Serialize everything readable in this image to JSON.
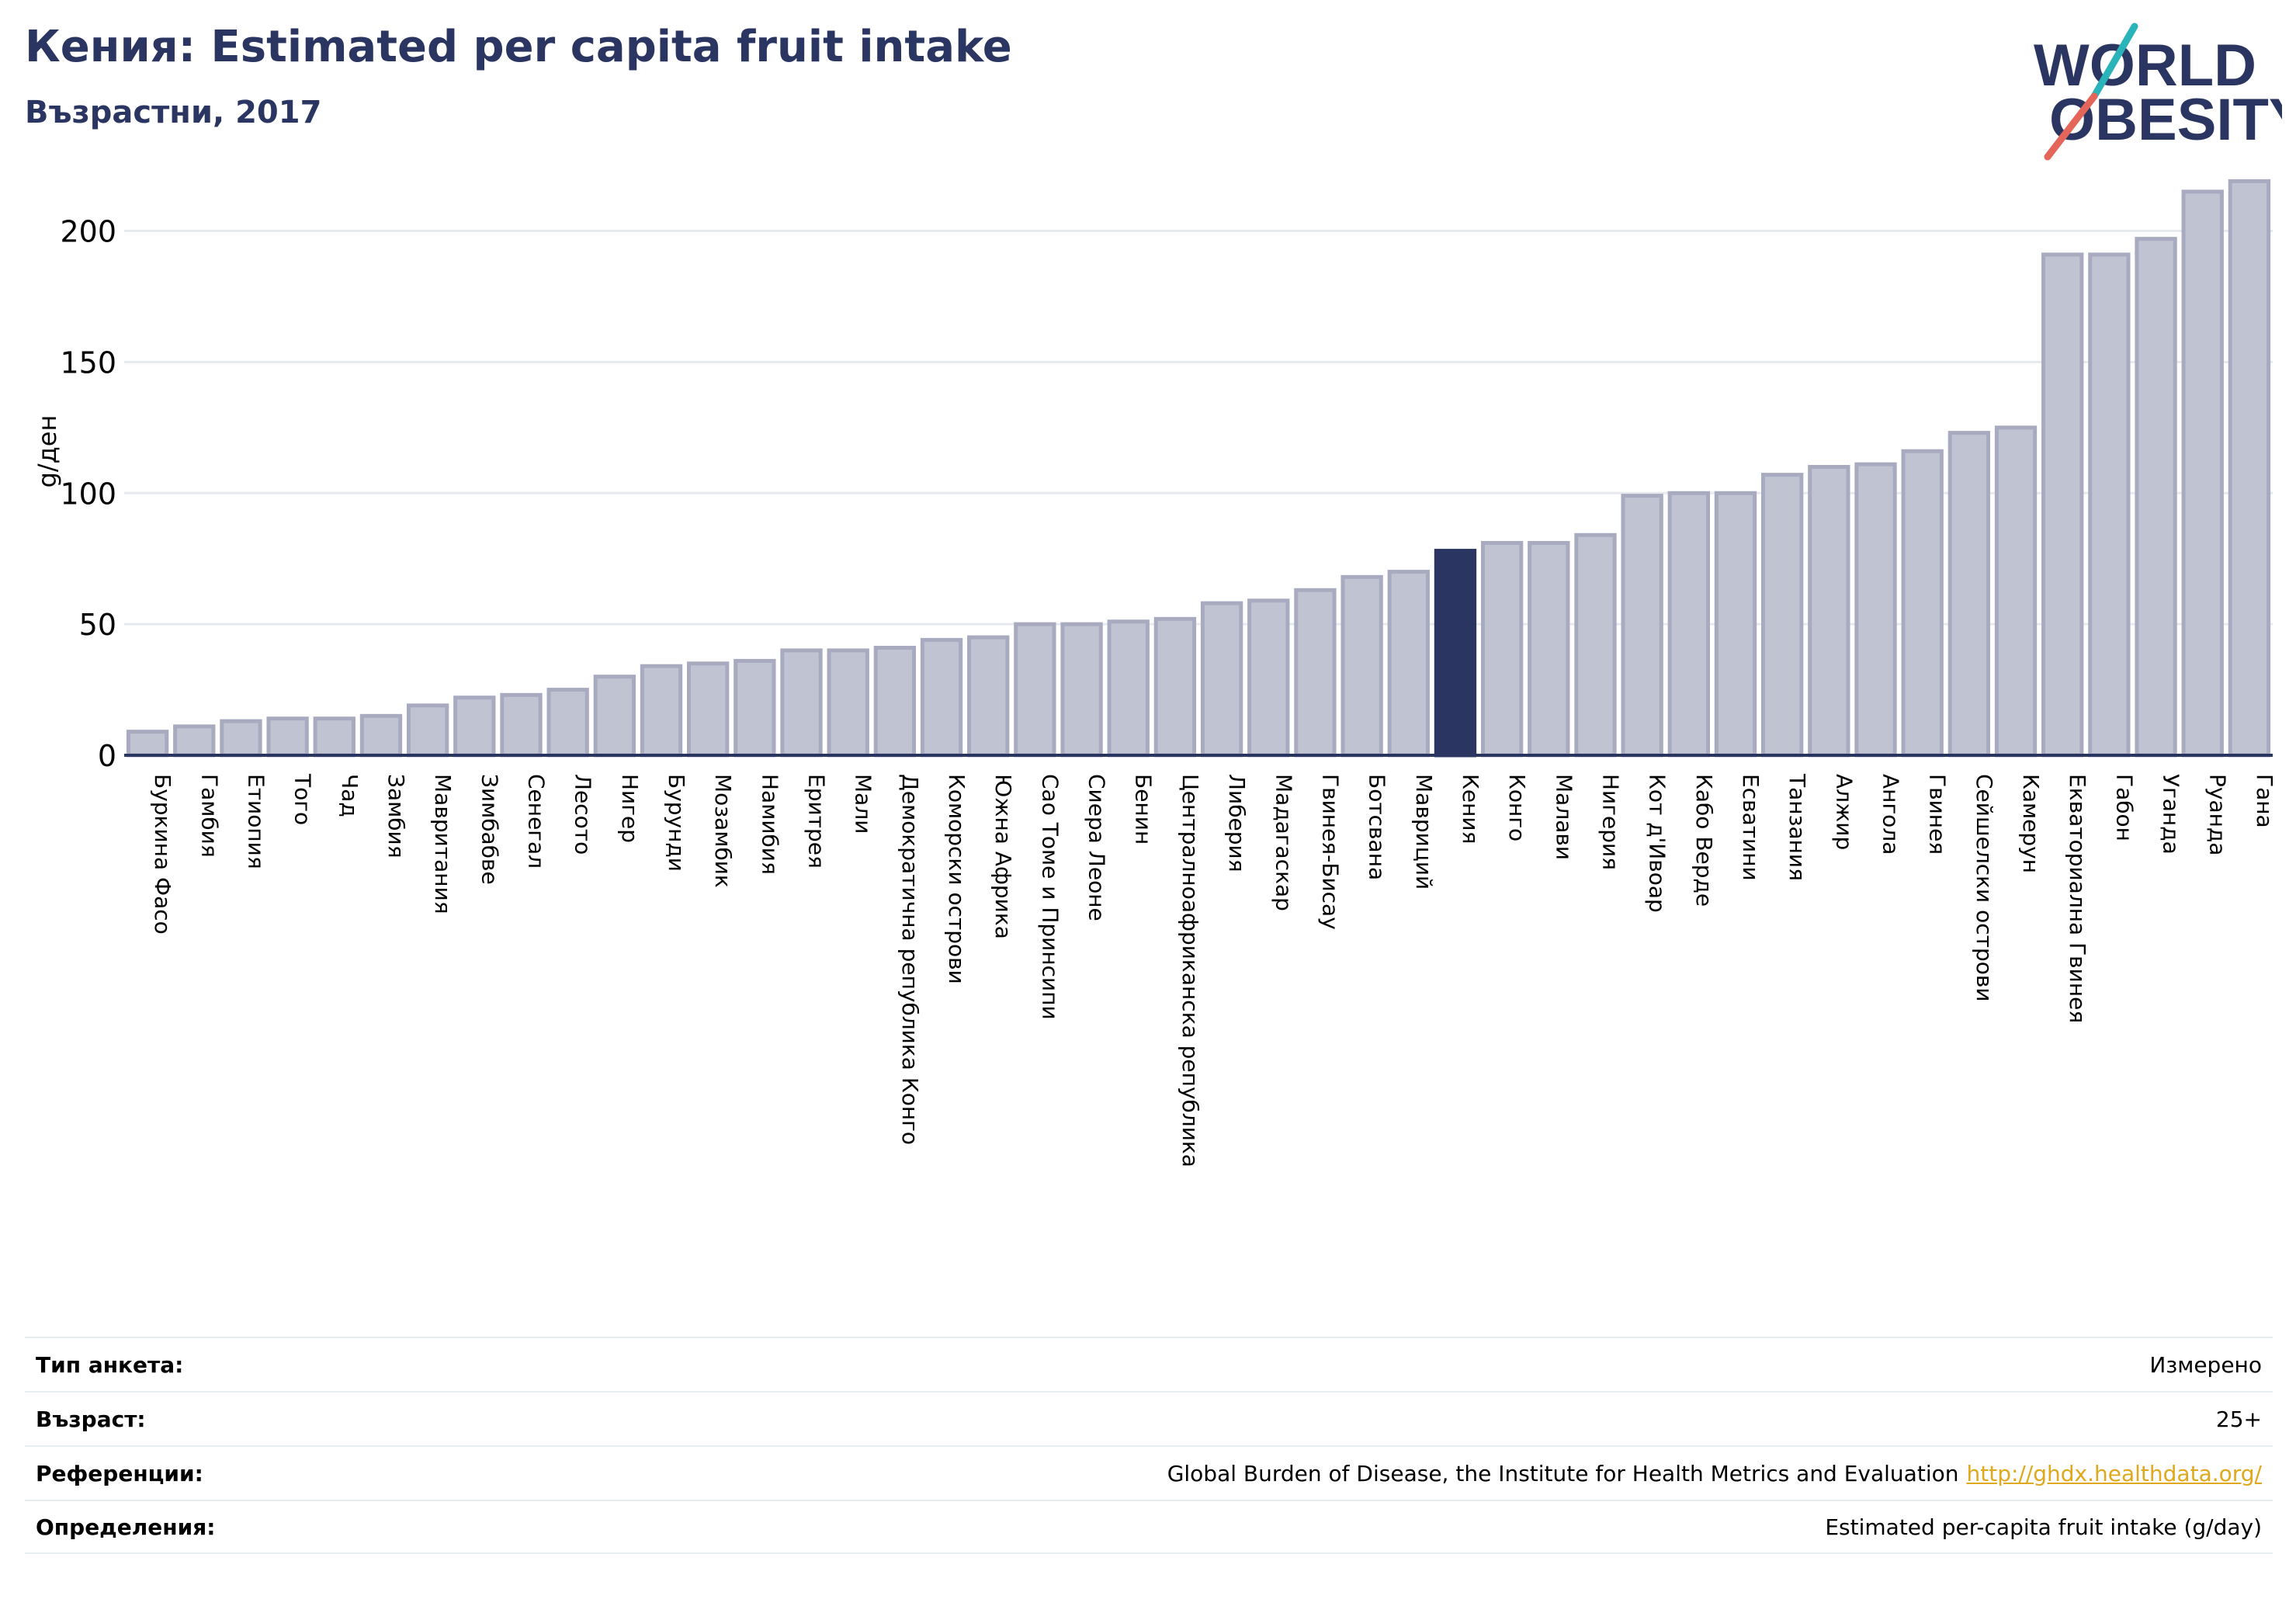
{
  "header": {
    "title": "Кения: Estimated per capita fruit intake",
    "subtitle": "Възрастни, 2017"
  },
  "logo": {
    "line1": "WORLD",
    "line2": "OBESITY",
    "colors": {
      "text": "#2b3561",
      "slash_top": "#2ab3b8",
      "slash_bottom": "#e4665a"
    }
  },
  "colors": {
    "bar_fill": "#c0c3d1",
    "bar_stroke": "#a8abc0",
    "highlight": "#2b3561",
    "grid": "#e6e9ee",
    "axis": "#2b3561"
  },
  "chart_data": {
    "type": "bar",
    "title": "",
    "ylabel": "g/ден",
    "xlabel": "",
    "ylim": [
      0,
      220
    ],
    "yticks": [
      0,
      50,
      100,
      150,
      200
    ],
    "grid": true,
    "highlight_category": "Кения",
    "categories": [
      "Буркина Фасо",
      "Гамбия",
      "Етиопия",
      "Того",
      "Чад",
      "Замбия",
      "Мавритания",
      "Зимбабве",
      "Сенегал",
      "Лесото",
      "Нигер",
      "Бурунди",
      "Мозамбик",
      "Намибия",
      "Еритрея",
      "Мали",
      "Демократична република Конго",
      "Коморски острови",
      "Южна Африка",
      "Сао Томе и Принсипи",
      "Сиера Леоне",
      "Бенин",
      "Централноафриканска република",
      "Либерия",
      "Мадагаскар",
      "Гвинея-Бисау",
      "Ботсвана",
      "Мавриций",
      "Кения",
      "Конго",
      "Малави",
      "Нигерия",
      "Кот д'Ивоар",
      "Кабо Верде",
      "Есватини",
      "Танзания",
      "Алжир",
      "Ангола",
      "Гвинея",
      "Сейшелски острови",
      "Камерун",
      "Екваториална Гвинея",
      "Габон",
      "Уганда",
      "Руанда",
      "Гана"
    ],
    "values": [
      9,
      11,
      13,
      14,
      14,
      15,
      19,
      22,
      23,
      25,
      30,
      34,
      35,
      36,
      40,
      40,
      41,
      44,
      45,
      50,
      50,
      51,
      52,
      58,
      59,
      63,
      68,
      70,
      78,
      81,
      81,
      84,
      99,
      100,
      100,
      107,
      110,
      111,
      116,
      123,
      125,
      191,
      191,
      197,
      215,
      219
    ]
  },
  "info": [
    {
      "key": "Тип анкета:",
      "value": "Измерено",
      "link": ""
    },
    {
      "key": "Възраст:",
      "value": "25+",
      "link": ""
    },
    {
      "key": "Референции:",
      "value": "Global Burden of Disease, the Institute for Health Metrics and Evaluation",
      "link": "http://ghdx.healthdata.org/"
    },
    {
      "key": "Определения:",
      "value": "Estimated per-capita fruit intake (g/day)",
      "link": ""
    }
  ]
}
